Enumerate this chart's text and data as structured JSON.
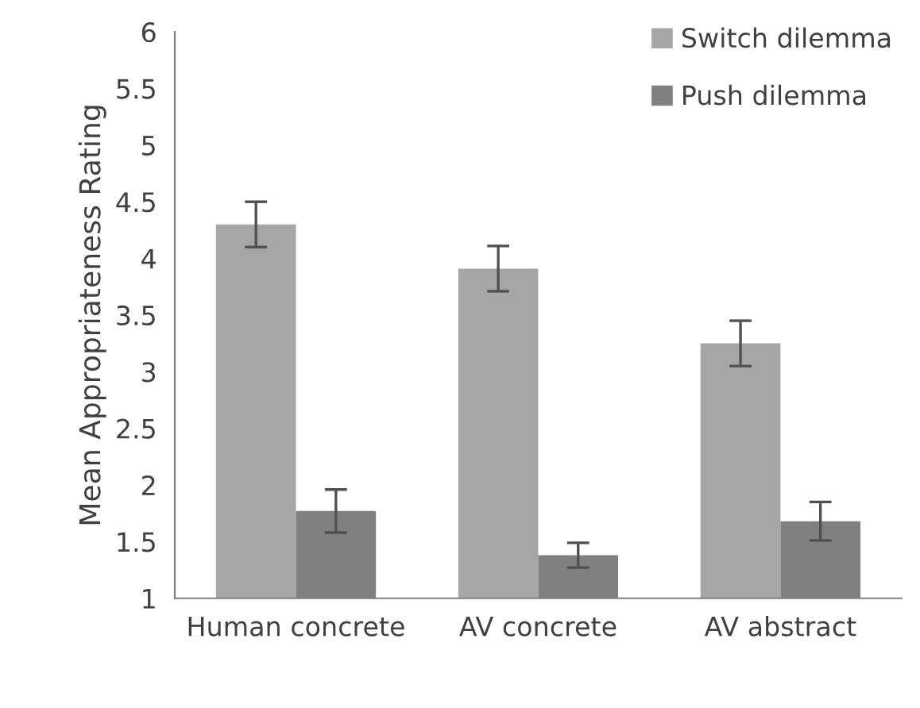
{
  "chart_data": {
    "type": "bar",
    "ylabel": "Mean Appropriateness Rating",
    "categories": [
      "Human concrete",
      "AV concrete",
      "AV abstract"
    ],
    "series": [
      {
        "name": "Switch dilemma",
        "color": "#a6a6a6",
        "values": [
          4.3,
          3.91,
          3.25
        ],
        "errors": [
          0.2,
          0.2,
          0.2
        ]
      },
      {
        "name": "Push dilemma",
        "color": "#808080",
        "values": [
          1.77,
          1.38,
          1.68
        ],
        "errors": [
          0.19,
          0.11,
          0.17
        ]
      }
    ],
    "ylim": [
      1,
      6
    ],
    "yticks": [
      1,
      1.5,
      2,
      2.5,
      3,
      3.5,
      4,
      4.5,
      5,
      5.5,
      6
    ],
    "legend": "top right",
    "grid": false
  }
}
